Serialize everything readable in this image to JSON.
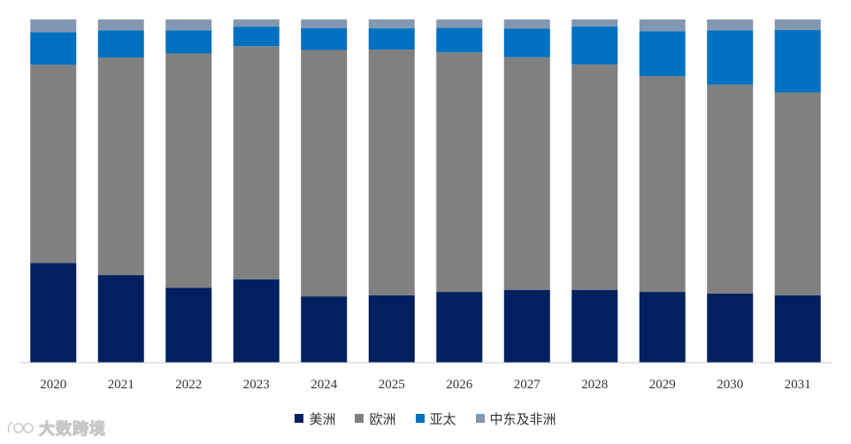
{
  "chart_data": {
    "type": "bar",
    "stacked": true,
    "normalized": true,
    "categories": [
      "2020",
      "2021",
      "2022",
      "2023",
      "2024",
      "2025",
      "2026",
      "2027",
      "2028",
      "2029",
      "2030",
      "2031"
    ],
    "ylim": [
      0,
      100
    ],
    "yaxis_visible": false,
    "grid": false,
    "legend_placement": "bottom",
    "series": [
      {
        "name": "美洲",
        "color": "#002060",
        "values": [
          29,
          25.5,
          21.8,
          24.3,
          19.3,
          19.6,
          20.6,
          21.2,
          21.2,
          20.6,
          20.1,
          19.6
        ]
      },
      {
        "name": "欧洲",
        "color": "#808080",
        "values": [
          57.8,
          63.4,
          68.3,
          67.9,
          71.8,
          71.6,
          69.8,
          67.8,
          65.7,
          62.9,
          60.9,
          59.1
        ]
      },
      {
        "name": "亚太",
        "color": "#0070C0",
        "values": [
          9.5,
          7.9,
          6.7,
          5.7,
          6.4,
          6.2,
          7.2,
          8.3,
          11.1,
          13.1,
          15.8,
          18.2
        ]
      },
      {
        "name": "中东及非洲",
        "color": "#8497B0",
        "values": [
          3.7,
          3.2,
          3.2,
          2.1,
          2.5,
          2.6,
          2.4,
          2.7,
          2.0,
          3.4,
          3.2,
          3.1
        ]
      }
    ]
  },
  "watermark": {
    "text": "大数跨境",
    "icon": "brand-logo-icon"
  }
}
